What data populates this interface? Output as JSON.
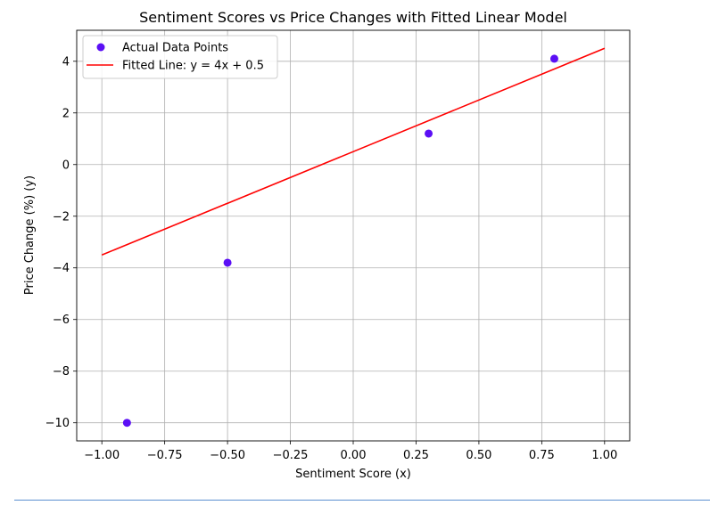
{
  "chart_data": {
    "type": "scatter",
    "title": "Sentiment Scores vs Price Changes with Fitted Linear Model",
    "xlabel": "Sentiment Score (x)",
    "ylabel": "Price Change (%) (y)",
    "xlim": [
      -1.1,
      1.1
    ],
    "ylim": [
      -10.7,
      5.2
    ],
    "x_ticks": [
      -1.0,
      -0.75,
      -0.5,
      -0.25,
      0.0,
      0.25,
      0.5,
      0.75,
      1.0
    ],
    "x_tick_labels": [
      "−1.00",
      "−0.75",
      "−0.50",
      "−0.25",
      "0.00",
      "0.25",
      "0.50",
      "0.75",
      "1.00"
    ],
    "y_ticks": [
      4,
      2,
      0,
      -2,
      -4,
      -6,
      -8,
      -10
    ],
    "y_tick_labels": [
      "4",
      "2",
      "0",
      "−2",
      "−4",
      "−6",
      "−8",
      "−10"
    ],
    "grid": true,
    "legend_position": "top-left",
    "series": [
      {
        "name": "Actual Data Points",
        "kind": "scatter",
        "color": "#5b0ff5",
        "points": [
          {
            "x": -0.9,
            "y": -10.0
          },
          {
            "x": -0.5,
            "y": -3.8
          },
          {
            "x": 0.3,
            "y": 1.2
          },
          {
            "x": 0.8,
            "y": 4.1
          }
        ]
      },
      {
        "name": "Fitted Line: y = 4x + 0.5",
        "kind": "line",
        "color": "#ff0000",
        "points": [
          {
            "x": -1.0,
            "y": -3.5
          },
          {
            "x": 1.0,
            "y": 4.5
          }
        ]
      }
    ]
  }
}
